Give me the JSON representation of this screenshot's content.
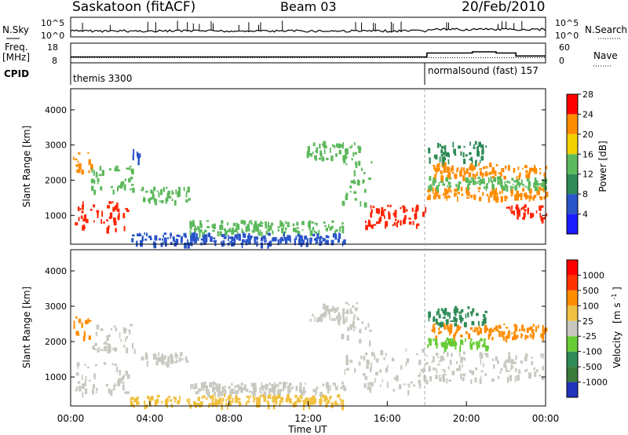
{
  "header": {
    "station": "Saskatoon (fitACF)",
    "beam": "Beam 03",
    "date": "20/Feb/2010"
  },
  "chart_data": [
    {
      "name": "N.Sky / N.Search",
      "type": "line",
      "left_label": "N.Sky",
      "right_label": "N.Search",
      "left_ticks": [
        "10^5",
        "10^0"
      ],
      "right_ticks": [
        "10^5",
        "10^0"
      ]
    },
    {
      "name": "Freq / Nave",
      "type": "line",
      "left_label_line1": "Freq.",
      "left_label_line2": "[MHz]",
      "right_label": "Nave",
      "left_ticks": [
        "18",
        "8"
      ],
      "right_ticks": [
        "60",
        "0"
      ],
      "freq_mhz": [
        {
          "t": 0,
          "v": 11
        },
        {
          "t": 18,
          "v": 11
        },
        {
          "t": 18,
          "v": 13
        },
        {
          "t": 20.3,
          "v": 13
        },
        {
          "t": 20.3,
          "v": 13.6
        },
        {
          "t": 21.5,
          "v": 13.6
        },
        {
          "t": 21.5,
          "v": 13
        },
        {
          "t": 22.5,
          "v": 13
        },
        {
          "t": 22.5,
          "v": 11.5
        },
        {
          "t": 24,
          "v": 11.5
        }
      ]
    },
    {
      "name": "CPID",
      "type": "table",
      "label": "CPID",
      "segments": [
        {
          "text": "themis 3300",
          "start": 0,
          "end": 18
        },
        {
          "text": "normalsound (fast) 157",
          "start": 18,
          "end": 24
        }
      ]
    },
    {
      "name": "Power",
      "type": "heatmap",
      "ylabel": "Slant Range [km]",
      "yticks": [
        1000,
        2000,
        3000,
        4000
      ],
      "ylim": [
        180,
        4600
      ],
      "xlim": [
        0,
        24
      ],
      "colorbar_label": "Power [dB]",
      "colorbar_ticks": [
        "4",
        "8",
        "12",
        "16",
        "20",
        "24",
        "28"
      ],
      "colorbar_colors": [
        "#1a1aff",
        "#2a55c8",
        "#2e8b57",
        "#5cb85c",
        "#f0d000",
        "#ff8c00",
        "#ff0000"
      ],
      "regions": [
        {
          "t0": 0.2,
          "t1": 2.9,
          "r0": 600,
          "r1": 1400,
          "c": "#ff2200"
        },
        {
          "t0": 0.1,
          "t1": 1.0,
          "r0": 2100,
          "r1": 2800,
          "c": "#ff8c00"
        },
        {
          "t0": 1.0,
          "t1": 3.2,
          "r0": 1700,
          "r1": 2400,
          "c": "#5cb85c"
        },
        {
          "t0": 3.0,
          "t1": 3.5,
          "r0": 2500,
          "r1": 2900,
          "c": "#2a55c8"
        },
        {
          "t0": 3.5,
          "t1": 6.0,
          "r0": 1400,
          "r1": 1800,
          "c": "#5cb85c"
        },
        {
          "t0": 6.0,
          "t1": 13.8,
          "r0": 500,
          "r1": 850,
          "c": "#5cb85c"
        },
        {
          "t0": 3.0,
          "t1": 13.8,
          "r0": 200,
          "r1": 500,
          "c": "#2a55c8"
        },
        {
          "t0": 11.8,
          "t1": 14.6,
          "r0": 2600,
          "r1": 3100,
          "c": "#5cb85c"
        },
        {
          "t0": 13.6,
          "t1": 15.2,
          "r0": 1300,
          "r1": 2600,
          "c": "#5cb85c"
        },
        {
          "t0": 14.8,
          "t1": 18.0,
          "r0": 700,
          "r1": 1300,
          "c": "#ff2200"
        },
        {
          "t0": 18.0,
          "t1": 24.0,
          "r0": 1500,
          "r1": 1800,
          "c": "#ff8c00"
        },
        {
          "t0": 18.0,
          "t1": 24.0,
          "r0": 1800,
          "r1": 2100,
          "c": "#5cb85c"
        },
        {
          "t0": 18.2,
          "t1": 24.0,
          "r0": 2100,
          "r1": 2500,
          "c": "#ff8c00"
        },
        {
          "t0": 18.0,
          "t1": 21.0,
          "r0": 2500,
          "r1": 3100,
          "c": "#2e8b57"
        },
        {
          "t0": 22.0,
          "t1": 24.0,
          "r0": 900,
          "r1": 1300,
          "c": "#ff2200"
        }
      ]
    },
    {
      "name": "Velocity",
      "type": "heatmap",
      "ylabel": "Slant Range [km]",
      "yticks": [
        1000,
        2000,
        3000,
        4000
      ],
      "ylim": [
        180,
        4600
      ],
      "xlim": [
        0,
        24
      ],
      "xticks": [
        "00:00",
        "04:00",
        "08:00",
        "12:00",
        "16:00",
        "20:00",
        "00:00"
      ],
      "xlabel": "Time UT",
      "colorbar_label_main": "Velocity",
      "colorbar_label_unit": "[m s",
      "colorbar_label_sup": "-1",
      "colorbar_label_end": "]",
      "colorbar_ticks": [
        "1000",
        "500",
        "100",
        "25",
        "-25",
        "-100",
        "-500",
        "-1000"
      ],
      "colorbar_colors": [
        "#2233bb",
        "#3a7a3a",
        "#2e8b57",
        "#66cc33",
        "#c8c8c0",
        "#f0c040",
        "#ff8c00",
        "#ff3300",
        "#ff0000"
      ],
      "regions": [
        {
          "t0": 0.2,
          "t1": 2.9,
          "r0": 550,
          "r1": 1400,
          "c": "#c8c8c0"
        },
        {
          "t0": 0.1,
          "t1": 1.0,
          "r0": 2100,
          "r1": 2700,
          "c": "#ff8c00"
        },
        {
          "t0": 1.0,
          "t1": 3.2,
          "r0": 1700,
          "r1": 2500,
          "c": "#c8c8c0"
        },
        {
          "t0": 3.5,
          "t1": 6.0,
          "r0": 1400,
          "r1": 1700,
          "c": "#c8c8c0"
        },
        {
          "t0": 6.0,
          "t1": 13.8,
          "r0": 550,
          "r1": 850,
          "c": "#c8c8c0"
        },
        {
          "t0": 3.0,
          "t1": 13.8,
          "r0": 200,
          "r1": 500,
          "c": "#f0c040"
        },
        {
          "t0": 11.8,
          "t1": 14.6,
          "r0": 2600,
          "r1": 3100,
          "c": "#c8c8c0"
        },
        {
          "t0": 13.6,
          "t1": 15.2,
          "r0": 1000,
          "r1": 2600,
          "c": "#c8c8c0"
        },
        {
          "t0": 14.8,
          "t1": 18.0,
          "r0": 600,
          "r1": 1800,
          "c": "#c8c8c0"
        },
        {
          "t0": 18.0,
          "t1": 24.0,
          "r0": 900,
          "r1": 1700,
          "c": "#c8c8c0"
        },
        {
          "t0": 18.2,
          "t1": 24.0,
          "r0": 2100,
          "r1": 2500,
          "c": "#ff8c00"
        },
        {
          "t0": 18.0,
          "t1": 21.0,
          "r0": 2500,
          "r1": 3000,
          "c": "#2e8b57"
        },
        {
          "t0": 18.0,
          "t1": 21.0,
          "r0": 1850,
          "r1": 2100,
          "c": "#66cc33"
        }
      ]
    }
  ]
}
